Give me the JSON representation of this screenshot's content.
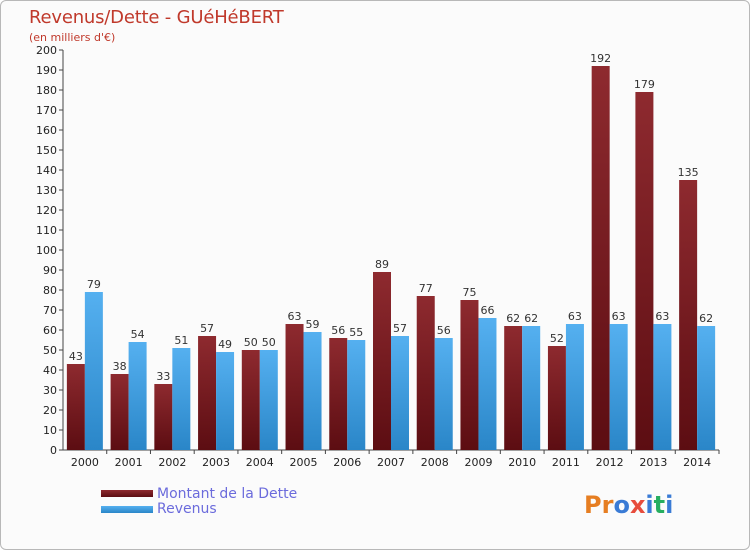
{
  "header": {
    "title": "Revenus/Dette - GUéHéBERT",
    "subtitle": "(en milliers d'€)"
  },
  "legend": {
    "debt_label": "Montant de la Dette",
    "revenue_label": "Revenus"
  },
  "logo": {
    "text": "Proxiti",
    "letters": [
      "P",
      "r",
      "o",
      "x",
      "i",
      "t",
      "i"
    ]
  },
  "colors": {
    "debt": "#7a1a1f",
    "revenue": "#3d9be0",
    "title": "#c0392b",
    "legend_text": "#6b6bdc",
    "logo": [
      "#e67e22",
      "#e67e22",
      "#3a7bd5",
      "#e74c3c",
      "#3a7bd5",
      "#27ae60",
      "#3a7bd5"
    ]
  },
  "chart_data": {
    "type": "bar",
    "categories": [
      "2000",
      "2001",
      "2002",
      "2003",
      "2004",
      "2005",
      "2006",
      "2007",
      "2008",
      "2009",
      "2010",
      "2011",
      "2012",
      "2013",
      "2014"
    ],
    "series": [
      {
        "name": "Montant de la Dette",
        "values": [
          43,
          38,
          33,
          57,
          50,
          63,
          56,
          89,
          77,
          75,
          62,
          52,
          192,
          179,
          135
        ]
      },
      {
        "name": "Revenus",
        "values": [
          79,
          54,
          51,
          49,
          50,
          59,
          55,
          57,
          56,
          66,
          62,
          63,
          63,
          63,
          62
        ]
      }
    ],
    "ylim": [
      0,
      200
    ],
    "yticks": [
      0,
      10,
      20,
      30,
      40,
      50,
      60,
      70,
      80,
      90,
      100,
      110,
      120,
      130,
      140,
      150,
      160,
      170,
      180,
      190,
      200
    ],
    "grid": false,
    "legend_position": "bottom-left"
  }
}
